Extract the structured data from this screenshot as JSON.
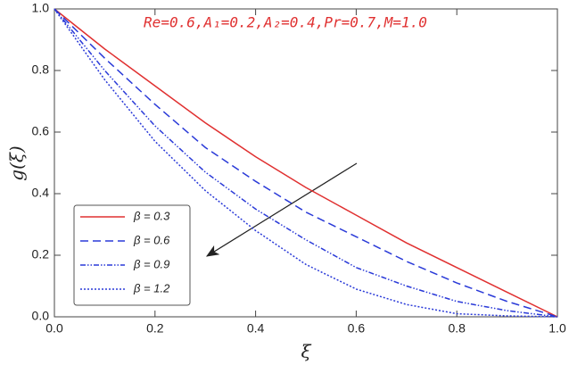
{
  "chart_data": {
    "type": "line",
    "annotation": "Re=0.6,A₁=0.2,A₂=0.4,Pr=0.7,M=1.0",
    "x_label": "ξ",
    "y_label": "g(ξ)",
    "x": [
      0,
      0.1,
      0.2,
      0.3,
      0.4,
      0.5,
      0.6,
      0.7,
      0.8,
      0.9,
      1.0
    ],
    "series": [
      {
        "name": "β = 0.3",
        "color": "#e03030",
        "dash": "solid",
        "values": [
          1,
          0.87,
          0.75,
          0.63,
          0.52,
          0.42,
          0.33,
          0.24,
          0.16,
          0.08,
          0
        ]
      },
      {
        "name": "β = 0.6",
        "color": "#2a3ad8",
        "dash": "dashed",
        "values": [
          1,
          0.84,
          0.69,
          0.55,
          0.44,
          0.34,
          0.26,
          0.18,
          0.11,
          0.05,
          0
        ]
      },
      {
        "name": "β = 0.9",
        "color": "#2a3ad8",
        "dash": "dashdotdot",
        "values": [
          1,
          0.8,
          0.62,
          0.47,
          0.35,
          0.25,
          0.16,
          0.1,
          0.05,
          0.02,
          0
        ]
      },
      {
        "name": "β = 1.2",
        "color": "#2a3ad8",
        "dash": "dotted",
        "values": [
          1,
          0.77,
          0.57,
          0.41,
          0.28,
          0.17,
          0.09,
          0.04,
          0.01,
          0.003,
          0
        ]
      }
    ],
    "xlim": [
      0,
      1
    ],
    "ylim": [
      0,
      1
    ],
    "xticks": [
      {
        "value": 0,
        "label": "0.0"
      },
      0.2,
      0.4,
      0.6,
      0.8,
      {
        "value": 1,
        "label": "1.0"
      }
    ],
    "yticks": [
      {
        "value": 0,
        "label": "0.0"
      },
      0.2,
      0.4,
      0.6,
      0.8,
      {
        "value": 1,
        "label": "1.0"
      }
    ],
    "grid": false,
    "legend": "lower left"
  }
}
